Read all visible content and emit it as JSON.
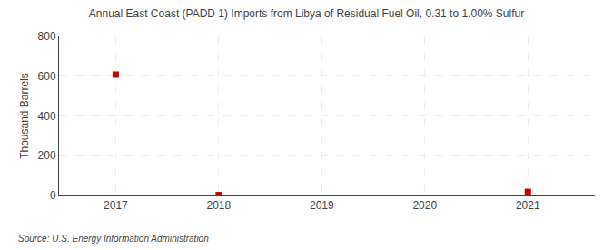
{
  "chart_data": {
    "type": "scatter",
    "title": "Annual East Coast (PADD 1) Imports from Libya of Residual Fuel Oil, 0.31 to 1.00% Sulfur",
    "ylabel": "Thousand Barrels",
    "annotations": [
      "Source: U.S. Energy Information Administration"
    ],
    "x": [
      2017,
      2018,
      2019,
      2020,
      2021
    ],
    "values": [
      608,
      2,
      null,
      null,
      18
    ],
    "color": "#cc0000",
    "marker": "square",
    "xlim": [
      2016.45,
      2021.65
    ],
    "xticks": [
      2017,
      2018,
      2019,
      2020,
      2021
    ],
    "ylim": [
      0,
      800
    ],
    "yticks": [
      0,
      200,
      400,
      600,
      800
    ],
    "grid": true
  }
}
